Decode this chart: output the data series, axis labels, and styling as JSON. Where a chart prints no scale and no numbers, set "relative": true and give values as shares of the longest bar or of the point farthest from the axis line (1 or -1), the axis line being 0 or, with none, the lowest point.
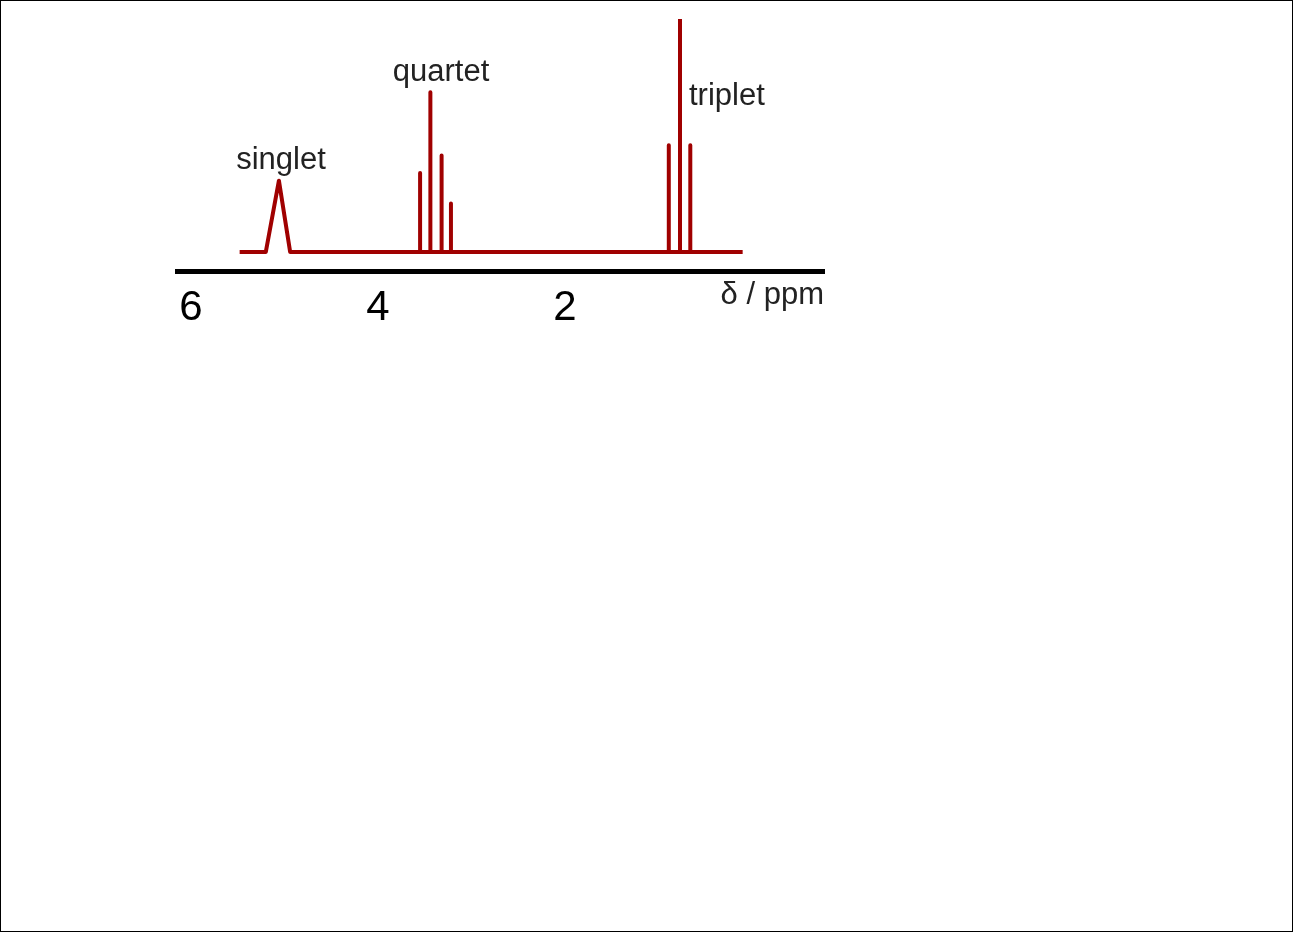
{
  "chart_data": {
    "type": "line",
    "relative": true,
    "xlabel": "δ / ppm",
    "xlim": [
      6.15,
      -0.77
    ],
    "xticks": [
      6,
      4,
      2
    ],
    "grid": false,
    "legend": false,
    "marker": "none",
    "line_style": "solid",
    "x": [
      5.48,
      5.2,
      5.06,
      4.94,
      3.55,
      3.55,
      3.55,
      3.44,
      3.44,
      3.44,
      3.32,
      3.32,
      3.32,
      3.22,
      3.22,
      3.22,
      0.89,
      0.89,
      0.89,
      0.77,
      0.77,
      0.77,
      0.66,
      0.66,
      0.66,
      0.1
    ],
    "series": [
      {
        "color": "#a00000",
        "values": [
          0.078,
          0.078,
          0.36,
          0.078,
          0.078,
          0.39,
          0.078,
          0.078,
          0.71,
          0.078,
          0.078,
          0.46,
          0.078,
          0.078,
          0.27,
          0.078,
          0.078,
          0.5,
          0.078,
          0.078,
          1,
          0.078,
          0.078,
          0.5,
          0.078,
          0.078
        ]
      }
    ],
    "annotations": [
      "singlet",
      "quartet",
      "triplet"
    ]
  }
}
